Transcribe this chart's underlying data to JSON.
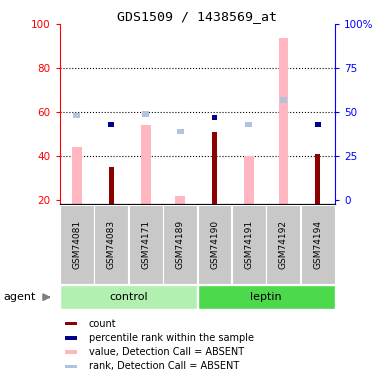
{
  "title": "GDS1509 / 1438569_at",
  "samples": [
    "GSM74081",
    "GSM74083",
    "GSM74171",
    "GSM74189",
    "GSM74190",
    "GSM74191",
    "GSM74192",
    "GSM74194"
  ],
  "groups": [
    {
      "name": "control",
      "color": "#b2f0b2",
      "indices": [
        0,
        1,
        2,
        3
      ]
    },
    {
      "name": "leptin",
      "color": "#4cd94c",
      "indices": [
        4,
        5,
        6,
        7
      ]
    }
  ],
  "value_absent": [
    44,
    0,
    54,
    22,
    0,
    40,
    94,
    0
  ],
  "rank_absent": [
    48,
    0,
    49,
    39,
    0,
    43,
    57,
    0
  ],
  "count_red": [
    0,
    35,
    0,
    0,
    51,
    0,
    0,
    41
  ],
  "rank_blue": [
    0,
    43,
    0,
    0,
    47,
    0,
    0,
    43
  ],
  "left_yticks": [
    20,
    40,
    60,
    80,
    100
  ],
  "right_ytick_vals": [
    0,
    25,
    50,
    75,
    100
  ],
  "right_ytick_labels": [
    "0",
    "25",
    "50",
    "75",
    "100%"
  ],
  "ylim_left": [
    18,
    100
  ],
  "color_value_absent": "#ffb6c1",
  "color_rank_absent": "#b0c4de",
  "color_count": "#8b0000",
  "color_rank_blue": "#00008b",
  "legend": [
    {
      "color": "#8b0000",
      "label": "count"
    },
    {
      "color": "#00008b",
      "label": "percentile rank within the sample"
    },
    {
      "color": "#ffb6c1",
      "label": "value, Detection Call = ABSENT"
    },
    {
      "color": "#b0c4de",
      "label": "rank, Detection Call = ABSENT"
    }
  ],
  "agent_label": "agent"
}
